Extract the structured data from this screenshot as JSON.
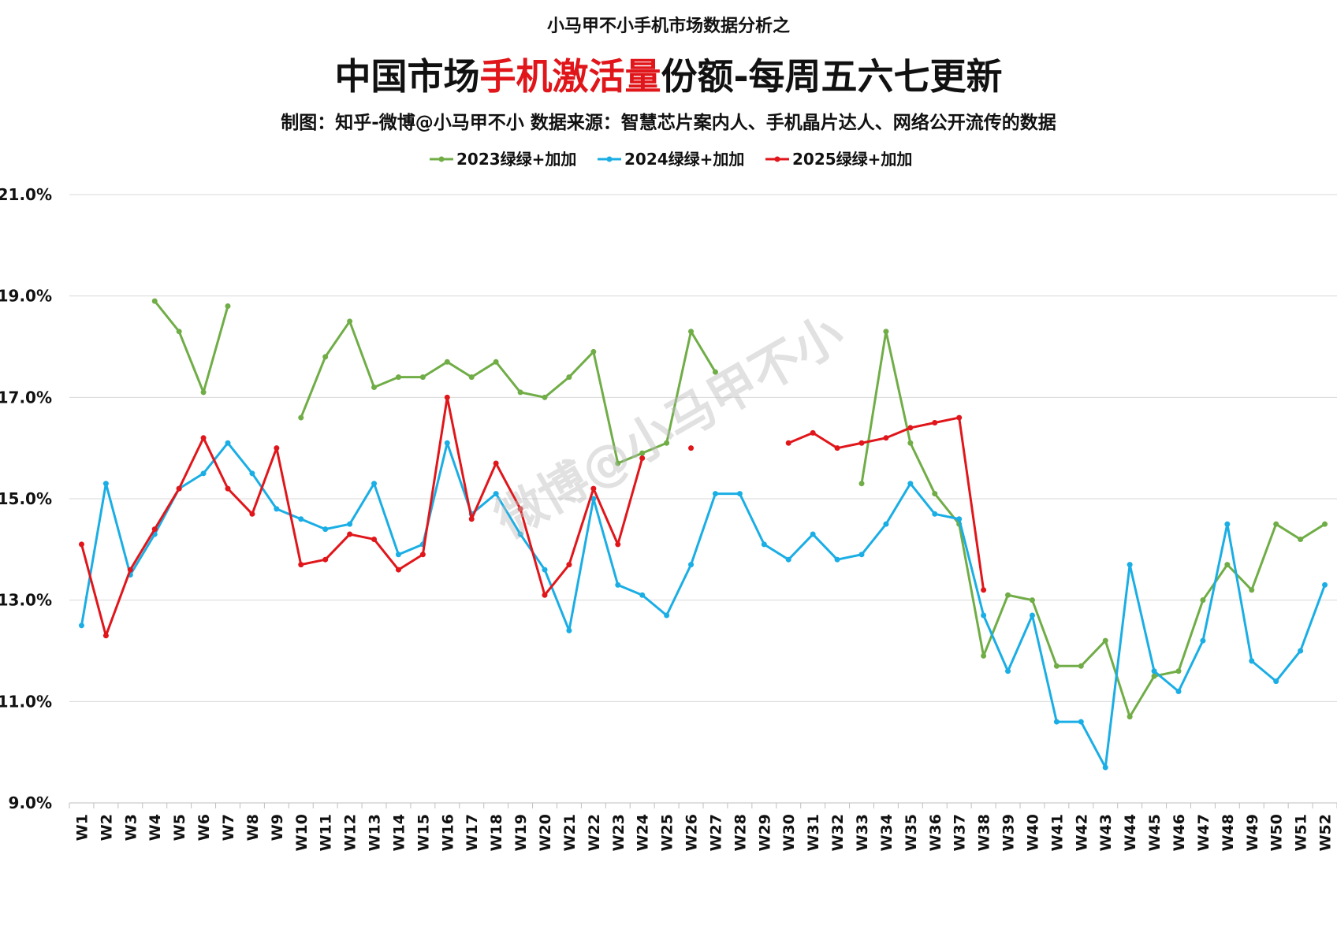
{
  "header": {
    "supertitle": "小马甲不小手机市场数据分析之",
    "title_parts": [
      {
        "text": "中国市场",
        "color": "#111111"
      },
      {
        "text": "手机激活量",
        "color": "#e0161b"
      },
      {
        "text": "份额-每周五六七更新",
        "color": "#111111"
      }
    ],
    "subtitle": "制图：知乎-微博@小马甲不小  数据来源：智慧芯片案内人、手机晶片达人、网络公开流传的数据"
  },
  "watermark": "微博@小马甲不小",
  "chart_data": {
    "type": "line",
    "categories": [
      "W1",
      "W2",
      "W3",
      "W4",
      "W5",
      "W6",
      "W7",
      "W8",
      "W9",
      "W10",
      "W11",
      "W12",
      "W13",
      "W14",
      "W15",
      "W16",
      "W17",
      "W18",
      "W19",
      "W20",
      "W21",
      "W22",
      "W23",
      "W24",
      "W25",
      "W26",
      "W27",
      "W28",
      "W29",
      "W30",
      "W31",
      "W32",
      "W33",
      "W34",
      "W35",
      "W36",
      "W37",
      "W38",
      "W39",
      "W40",
      "W41",
      "W42",
      "W43",
      "W44",
      "W45",
      "W46",
      "W47",
      "W48",
      "W49",
      "W50",
      "W51",
      "W52"
    ],
    "y_tick_labels": [
      "9.0%",
      "11.0%",
      "13.0%",
      "15.0%",
      "17.0%",
      "19.0%",
      "21.0%"
    ],
    "ylim": [
      9.0,
      21.0
    ],
    "y_unit": "%",
    "grid": true,
    "legend_position": "top-center",
    "series": [
      {
        "name": "2023绿绿+加加",
        "color": "#70ad47",
        "values": [
          null,
          null,
          null,
          18.9,
          18.3,
          17.1,
          18.8,
          null,
          null,
          16.6,
          17.8,
          18.5,
          17.2,
          17.4,
          17.4,
          17.7,
          17.4,
          17.7,
          17.1,
          17.0,
          17.4,
          17.9,
          15.7,
          15.9,
          16.1,
          18.3,
          17.5,
          null,
          null,
          null,
          null,
          null,
          15.3,
          18.3,
          16.1,
          15.1,
          14.5,
          11.9,
          13.1,
          13.0,
          11.7,
          11.7,
          12.2,
          10.7,
          11.5,
          11.6,
          13.0,
          13.7,
          13.2,
          14.5,
          14.2,
          14.5
        ]
      },
      {
        "name": "2024绿绿+加加",
        "color": "#1aaee5",
        "values": [
          12.5,
          15.3,
          13.5,
          14.3,
          15.2,
          15.5,
          16.1,
          15.5,
          14.8,
          14.6,
          14.4,
          14.5,
          15.3,
          13.9,
          14.1,
          16.1,
          14.7,
          15.1,
          14.3,
          13.6,
          12.4,
          15.0,
          13.3,
          13.1,
          12.7,
          13.7,
          15.1,
          15.1,
          14.1,
          13.8,
          14.3,
          13.8,
          13.9,
          14.5,
          15.3,
          14.7,
          14.6,
          12.7,
          11.6,
          12.7,
          10.6,
          10.6,
          9.7,
          13.7,
          11.6,
          11.2,
          12.2,
          14.5,
          11.8,
          11.4,
          12.0,
          13.3
        ]
      },
      {
        "name": "2025绿绿+加加",
        "color": "#e0161b",
        "values": [
          14.1,
          12.3,
          13.6,
          14.4,
          15.2,
          16.2,
          15.2,
          14.7,
          16.0,
          13.7,
          13.8,
          14.3,
          14.2,
          13.6,
          13.9,
          17.0,
          14.6,
          15.7,
          14.8,
          13.1,
          13.7,
          15.2,
          14.1,
          15.8,
          null,
          16.0,
          null,
          null,
          null,
          16.1,
          16.3,
          16.0,
          16.1,
          16.2,
          16.4,
          16.5,
          16.6,
          13.2,
          null,
          null,
          null,
          null,
          null,
          null,
          null,
          null,
          null,
          null,
          null,
          null,
          null,
          null
        ]
      }
    ]
  }
}
